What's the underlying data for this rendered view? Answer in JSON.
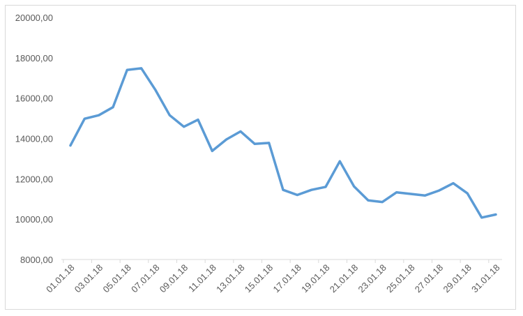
{
  "chart_data": {
    "type": "line",
    "title": "",
    "xlabel": "",
    "ylabel": "",
    "ylim": [
      8000,
      20000
    ],
    "yticks": [
      8000,
      10000,
      12000,
      14000,
      16000,
      18000,
      20000
    ],
    "ytick_labels": [
      "8000,00",
      "10000,00",
      "12000,00",
      "14000,00",
      "16000,00",
      "18000,00",
      "20000,00"
    ],
    "grid": false,
    "legend": "none",
    "x": [
      "01.01.18",
      "02.01.18",
      "03.01.18",
      "04.01.18",
      "05.01.18",
      "06.01.18",
      "07.01.18",
      "08.01.18",
      "09.01.18",
      "10.01.18",
      "11.01.18",
      "12.01.18",
      "13.01.18",
      "14.01.18",
      "15.01.18",
      "16.01.18",
      "17.01.18",
      "18.01.18",
      "19.01.18",
      "20.01.18",
      "21.01.18",
      "22.01.18",
      "23.01.18",
      "24.01.18",
      "25.01.18",
      "26.01.18",
      "27.01.18",
      "28.01.18",
      "29.01.18",
      "30.01.18",
      "31.01.18"
    ],
    "xtick_labels": [
      "01.01.18",
      "03.01.18",
      "05.01.18",
      "07.01.18",
      "09.01.18",
      "11.01.18",
      "13.01.18",
      "15.01.18",
      "17.01.18",
      "19.01.18",
      "21.01.18",
      "23.01.18",
      "25.01.18",
      "27.01.18",
      "29.01.18",
      "31.01.18"
    ],
    "series": [
      {
        "color": "#5b9bd5",
        "values": [
          13650,
          14980,
          15150,
          15550,
          17400,
          17480,
          16400,
          15150,
          14580,
          14930,
          13380,
          13950,
          14350,
          13730,
          13780,
          11450,
          11200,
          11450,
          11600,
          12870,
          11620,
          10930,
          10850,
          11330,
          11250,
          11170,
          11420,
          11780,
          11280,
          10080,
          10230
        ]
      }
    ]
  }
}
